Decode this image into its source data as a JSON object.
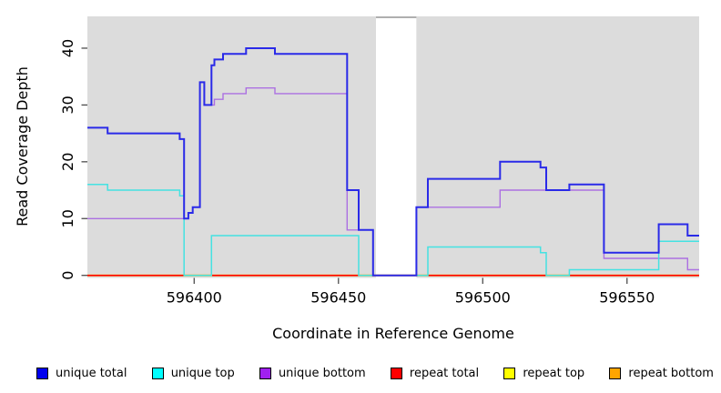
{
  "chart_data": {
    "type": "line",
    "step": true,
    "title": "",
    "xlabel": "Coordinate in Reference Genome",
    "ylabel": "Read Coverage Depth",
    "xlim": [
      596363,
      596575
    ],
    "ylim": [
      0,
      45.6
    ],
    "x_ticks": [
      596400,
      596450,
      596500,
      596550
    ],
    "y_ticks": [
      0,
      10,
      20,
      30,
      40
    ],
    "grid": false,
    "legend_position": "bottom",
    "plot_background": "#DCDCDC",
    "axis_tick_color": "#4D4D4D",
    "text_color": "#000000",
    "missing_data_gap": {
      "x_start": 596463,
      "x_end": 596477,
      "fill": "#FFFFFF",
      "top_border_color": "#A0A0A0"
    },
    "series": [
      {
        "name": "unique total",
        "legend_color": "#0000EE",
        "line_color": "#2A2AE8",
        "line_width": 2,
        "points": [
          [
            596363,
            26
          ],
          [
            596370,
            25
          ],
          [
            596395,
            24
          ],
          [
            596396.5,
            10
          ],
          [
            596398,
            11
          ],
          [
            596399.5,
            12
          ],
          [
            596402,
            34
          ],
          [
            596403.5,
            30
          ],
          [
            596406,
            37
          ],
          [
            596407,
            38
          ],
          [
            596410,
            39
          ],
          [
            596418,
            40
          ],
          [
            596428,
            39
          ],
          [
            596453,
            15
          ],
          [
            596457,
            8
          ],
          [
            596462,
            0
          ],
          [
            596477,
            12
          ],
          [
            596481,
            17
          ],
          [
            596506,
            20
          ],
          [
            596520,
            19
          ],
          [
            596522,
            15
          ],
          [
            596530,
            16
          ],
          [
            596542,
            4
          ],
          [
            596561,
            9
          ],
          [
            596571,
            7
          ],
          [
            596575,
            7
          ]
        ]
      },
      {
        "name": "unique top",
        "legend_color": "#00FFFF",
        "line_color": "#45E2E2",
        "line_width": 1.5,
        "points": [
          [
            596363,
            16
          ],
          [
            596370,
            15
          ],
          [
            596395,
            14
          ],
          [
            596396.5,
            0
          ],
          [
            596406,
            7
          ],
          [
            596457,
            0
          ],
          [
            596481,
            5
          ],
          [
            596520,
            4
          ],
          [
            596522,
            0
          ],
          [
            596530,
            1
          ],
          [
            596561,
            6
          ],
          [
            596575,
            6
          ]
        ]
      },
      {
        "name": "unique bottom",
        "legend_color": "#A020F0",
        "line_color": "#AC70E2",
        "line_width": 1.4,
        "points": [
          [
            596363,
            10
          ],
          [
            596398,
            11
          ],
          [
            596399.5,
            12
          ],
          [
            596402,
            34
          ],
          [
            596403.5,
            30
          ],
          [
            596407,
            31
          ],
          [
            596410,
            32
          ],
          [
            596418,
            33
          ],
          [
            596428,
            32
          ],
          [
            596453,
            8
          ],
          [
            596462,
            0
          ],
          [
            596477,
            12
          ],
          [
            596506,
            15
          ],
          [
            596542,
            3
          ],
          [
            596571,
            1
          ],
          [
            596575,
            1
          ]
        ]
      },
      {
        "name": "repeat total",
        "legend_color": "#FF0000",
        "line_color": "#FF0000",
        "line_width": 1.5,
        "points": [
          [
            596363,
            0
          ],
          [
            596575,
            0
          ]
        ]
      },
      {
        "name": "repeat top",
        "legend_color": "#FFFF00",
        "line_color": "#FFFF00",
        "line_width": 1.5,
        "points": [
          [
            596363,
            0
          ],
          [
            596575,
            0
          ]
        ]
      },
      {
        "name": "repeat bottom",
        "legend_color": "#FFA500",
        "line_color": "#FFA500",
        "line_width": 2,
        "points": [
          [
            596363,
            0
          ],
          [
            596575,
            0
          ]
        ]
      }
    ]
  }
}
